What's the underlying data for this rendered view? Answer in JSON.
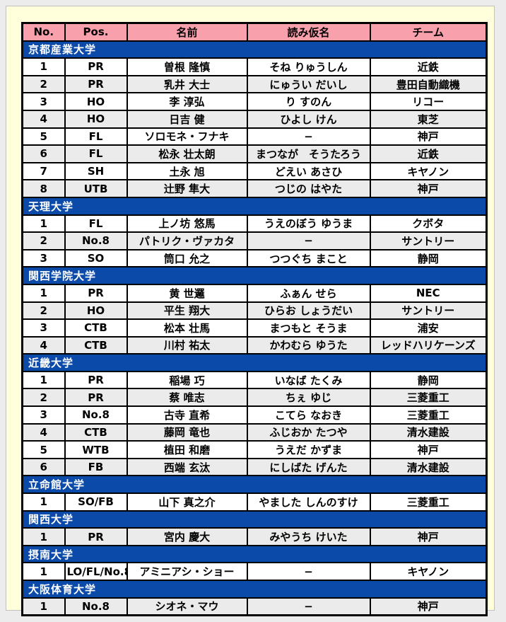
{
  "window": {
    "frame_color": "#ececec",
    "panel_color": "#ffffdb",
    "panel_border_color": "#c0c0c0"
  },
  "table": {
    "colors": {
      "header_bg": "#f9a0ad",
      "header_text": "#000000",
      "section_bg": "#0b4aa8",
      "section_text": "#ffffff",
      "row_bg": "#ffffff",
      "row_alt_bg": "#ebebeb",
      "border": "#000000"
    },
    "columns": [
      {
        "key": "no",
        "label": "No."
      },
      {
        "key": "pos",
        "label": "Pos."
      },
      {
        "key": "name",
        "label": "名前"
      },
      {
        "key": "kana",
        "label": "読み仮名"
      },
      {
        "key": "team",
        "label": "チーム"
      }
    ],
    "sections": [
      {
        "title": "京都産業大学",
        "rows": [
          {
            "no": "1",
            "pos": "PR",
            "name": "曽根 隆慎",
            "kana": "そね りゅうしん",
            "team": "近鉄",
            "shaded": false
          },
          {
            "no": "2",
            "pos": "PR",
            "name": "乳井 大士",
            "kana": "にゅうい だいし",
            "team": "豊田自動織機",
            "shaded": true
          },
          {
            "no": "3",
            "pos": "HO",
            "name": "李 淳弘",
            "kana": "り すのん",
            "team": "リコー",
            "shaded": false
          },
          {
            "no": "4",
            "pos": "HO",
            "name": "日吉 健",
            "kana": "ひよし けん",
            "team": "東芝",
            "shaded": true
          },
          {
            "no": "5",
            "pos": "FL",
            "name": "ソロモネ・フナキ",
            "kana": "−",
            "team": "神戸",
            "shaded": false
          },
          {
            "no": "6",
            "pos": "FL",
            "name": "松永 壮太朗",
            "kana": "まつなが　そうたろう",
            "team": "近鉄",
            "shaded": true
          },
          {
            "no": "7",
            "pos": "SH",
            "name": "土永 旭",
            "kana": "どえい あさひ",
            "team": "キヤノン",
            "shaded": false
          },
          {
            "no": "8",
            "pos": "UTB",
            "name": "辻野 隼大",
            "kana": "つじの はやた",
            "team": "神戸",
            "shaded": true
          }
        ]
      },
      {
        "title": "天理大学",
        "rows": [
          {
            "no": "1",
            "pos": "FL",
            "name": "上ノ坊 悠馬",
            "kana": "うえのぼう ゆうま",
            "team": "クボタ",
            "shaded": false
          },
          {
            "no": "2",
            "pos": "No.8",
            "name": "パトリク・ヴァカタ",
            "kana": "−",
            "team": "サントリー",
            "shaded": true
          },
          {
            "no": "3",
            "pos": "SO",
            "name": "筒口 允之",
            "kana": "つつぐち まこと",
            "team": "静岡",
            "shaded": false
          }
        ]
      },
      {
        "title": "関西学院大学",
        "rows": [
          {
            "no": "1",
            "pos": "PR",
            "name": "黄 世邏",
            "kana": "ふぁん せら",
            "team": "NEC",
            "shaded": false
          },
          {
            "no": "2",
            "pos": "HO",
            "name": "平生 翔大",
            "kana": "ひらお しょうだい",
            "team": "サントリー",
            "shaded": true
          },
          {
            "no": "3",
            "pos": "CTB",
            "name": "松本 壮馬",
            "kana": "まつもと そうま",
            "team": "浦安",
            "shaded": false
          },
          {
            "no": "4",
            "pos": "CTB",
            "name": "川村 祐太",
            "kana": "かわむら ゆうた",
            "team": "レッドハリケーンズ",
            "shaded": true
          }
        ]
      },
      {
        "title": "近畿大学",
        "rows": [
          {
            "no": "1",
            "pos": "PR",
            "name": "稲場 巧",
            "kana": "いなば たくみ",
            "team": "静岡",
            "shaded": false
          },
          {
            "no": "2",
            "pos": "PR",
            "name": "蔡 唯志",
            "kana": "ちぇ ゆじ",
            "team": "三菱重工",
            "shaded": true
          },
          {
            "no": "3",
            "pos": "No.8",
            "name": "古寺 直希",
            "kana": "こてら なおき",
            "team": "三菱重工",
            "shaded": false
          },
          {
            "no": "4",
            "pos": "CTB",
            "name": "藤岡 竜也",
            "kana": "ふじおか たつや",
            "team": "清水建設",
            "shaded": true
          },
          {
            "no": "5",
            "pos": "WTB",
            "name": "植田 和磨",
            "kana": "うえだ かずま",
            "team": "神戸",
            "shaded": false
          },
          {
            "no": "6",
            "pos": "FB",
            "name": "西端 玄汰",
            "kana": "にしばた げんた",
            "team": "清水建設",
            "shaded": true
          }
        ]
      },
      {
        "title": "立命館大学",
        "rows": [
          {
            "no": "1",
            "pos": "SO/FB",
            "name": "山下 真之介",
            "kana": "やました しんのすけ",
            "team": "三菱重工",
            "shaded": false
          }
        ]
      },
      {
        "title": "関西大学",
        "rows": [
          {
            "no": "1",
            "pos": "PR",
            "name": "宮内 慶大",
            "kana": "みやうち けいた",
            "team": "神戸",
            "shaded": true
          }
        ]
      },
      {
        "title": "摂南大学",
        "rows": [
          {
            "no": "1",
            "pos": "LO/FL/No.8",
            "name": "アミニアシ・ショー",
            "kana": "−",
            "team": "キヤノン",
            "shaded": false
          }
        ]
      },
      {
        "title": "大阪体育大学",
        "rows": [
          {
            "no": "1",
            "pos": "No.8",
            "name": "シオネ・マウ",
            "kana": "−",
            "team": "神戸",
            "shaded": true
          }
        ]
      }
    ]
  }
}
